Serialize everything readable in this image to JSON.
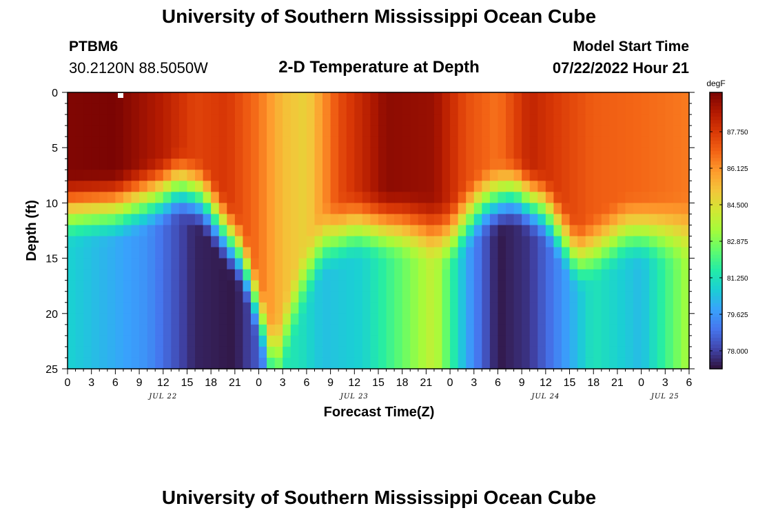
{
  "header": {
    "title": "University of Southern Mississippi Ocean Cube",
    "station": "PTBM6",
    "coords": "30.2120N  88.5050W",
    "subtitle": "2-D Temperature at Depth",
    "model_start_label": "Model Start Time",
    "model_start_value": "07/22/2022 Hour 21"
  },
  "footer": {
    "title": "University of Southern Mississippi Ocean Cube"
  },
  "chart_data": {
    "type": "heatmap",
    "title": "2-D Temperature at Depth",
    "xlabel": "Forecast Time(Z)",
    "ylabel": "Depth (ft)",
    "x_range_hours": [
      0,
      78
    ],
    "x_ticks": [
      "0",
      "3",
      "6",
      "9",
      "12",
      "15",
      "18",
      "21",
      "0",
      "3",
      "6",
      "9",
      "12",
      "15",
      "18",
      "21",
      "0",
      "3",
      "6",
      "9",
      "12",
      "15",
      "18",
      "21",
      "0",
      "3",
      "6"
    ],
    "x_tick_hours": [
      0,
      3,
      6,
      9,
      12,
      15,
      18,
      21,
      24,
      27,
      30,
      33,
      36,
      39,
      42,
      45,
      48,
      51,
      54,
      57,
      60,
      63,
      66,
      69,
      72,
      75,
      78
    ],
    "date_labels": [
      {
        "label": "JUL 22",
        "hour": 12
      },
      {
        "label": "JUL 23",
        "hour": 36
      },
      {
        "label": "JUL 24",
        "hour": 60
      },
      {
        "label": "JUL 25",
        "hour": 75
      }
    ],
    "y_range_ft": [
      0,
      25
    ],
    "y_ticks": [
      0,
      5,
      10,
      15,
      20,
      25
    ],
    "colorbar": {
      "unit": "degF",
      "min": 77.2,
      "max": 89.5,
      "ticks": [
        "87.750",
        "86.125",
        "84.500",
        "82.875",
        "81.250",
        "79.625",
        "78.000"
      ],
      "tick_values": [
        87.75,
        86.125,
        84.5,
        82.875,
        81.25,
        79.625,
        78.0
      ],
      "colormap": [
        "#30123b",
        "#4145ab",
        "#4675ed",
        "#39a2fc",
        "#1bcfd4",
        "#24eca6",
        "#61fc6c",
        "#a4fc3b",
        "#d1e834",
        "#f3c63a",
        "#fe9b2d",
        "#f36315",
        "#d93806",
        "#b11901",
        "#7a0403"
      ]
    },
    "thermocline_depth_ft": {
      "hours": [
        0,
        6,
        12,
        14,
        17,
        22,
        26,
        29,
        32,
        36,
        42,
        48,
        52,
        56,
        60,
        64,
        70,
        78
      ],
      "depths": [
        10.5,
        10.3,
        9.0,
        8.3,
        9.5,
        15.0,
        24.5,
        18.0,
        13.5,
        12.0,
        12.0,
        12.8,
        10.0,
        9.0,
        10.5,
        15.0,
        12.5,
        12.5
      ]
    },
    "surface_temp_degF": {
      "hours": [
        0,
        6,
        12,
        16,
        20,
        24,
        27,
        30,
        34,
        40,
        46,
        50,
        54,
        58,
        62,
        66,
        72,
        78
      ],
      "values": [
        89.4,
        89.5,
        88.5,
        87.5,
        87.8,
        86.6,
        85.3,
        84.8,
        87.3,
        89.2,
        89.0,
        87.3,
        86.6,
        88.3,
        87.6,
        87.0,
        86.8,
        86.5
      ]
    },
    "bottom_temp_degF": {
      "hours": [
        0,
        10,
        16,
        21,
        24,
        26,
        29,
        32,
        37,
        42,
        46,
        50,
        54,
        58,
        62,
        66,
        72,
        78
      ],
      "values": [
        80.8,
        79.5,
        77.5,
        77.3,
        78.5,
        81.5,
        81.3,
        80.4,
        80.8,
        82.5,
        84.0,
        80.0,
        77.3,
        77.8,
        79.5,
        81.3,
        80.3,
        83.5
      ]
    }
  }
}
